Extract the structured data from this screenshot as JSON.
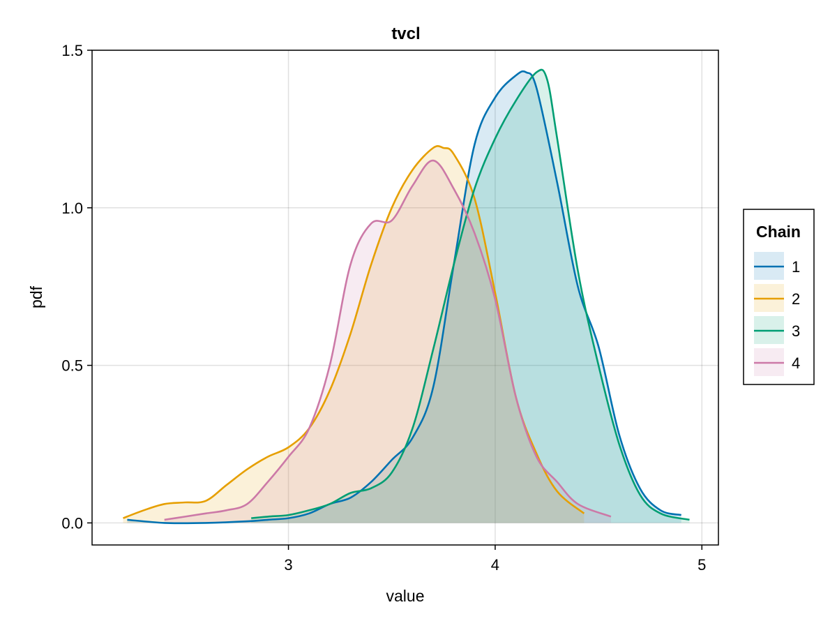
{
  "chart_data": {
    "type": "area",
    "title": "tvcl",
    "xlabel": "value",
    "ylabel": "pdf",
    "xlim": [
      2.05,
      5.08
    ],
    "ylim": [
      -0.07,
      1.5
    ],
    "xticks": [
      3,
      4,
      5
    ],
    "xtick_labels": [
      "3",
      "4",
      "5"
    ],
    "yticks": [
      0.0,
      0.5,
      1.0,
      1.5
    ],
    "ytick_labels": [
      "0.0",
      "0.5",
      "1.0",
      "1.5"
    ],
    "grid": true,
    "legend": {
      "title": "Chain",
      "placement": "right",
      "entries": [
        "1",
        "2",
        "3",
        "4"
      ]
    },
    "series": [
      {
        "name": "1",
        "color": "#0072b2",
        "x": [
          2.22,
          2.4,
          2.6,
          2.8,
          2.9,
          3.0,
          3.1,
          3.2,
          3.3,
          3.4,
          3.5,
          3.6,
          3.7,
          3.8,
          3.9,
          4.0,
          4.1,
          4.15,
          4.2,
          4.3,
          4.4,
          4.5,
          4.6,
          4.7,
          4.8,
          4.9
        ],
        "y": [
          0.01,
          0.0,
          0.0,
          0.005,
          0.01,
          0.015,
          0.03,
          0.06,
          0.08,
          0.13,
          0.2,
          0.27,
          0.43,
          0.82,
          1.2,
          1.35,
          1.42,
          1.43,
          1.38,
          1.08,
          0.75,
          0.56,
          0.28,
          0.11,
          0.04,
          0.025
        ]
      },
      {
        "name": "2",
        "color": "#e69f00",
        "x": [
          2.2,
          2.3,
          2.4,
          2.5,
          2.6,
          2.7,
          2.8,
          2.9,
          3.0,
          3.1,
          3.2,
          3.3,
          3.4,
          3.5,
          3.6,
          3.7,
          3.75,
          3.8,
          3.9,
          4.0,
          4.1,
          4.2,
          4.3,
          4.43
        ],
        "y": [
          0.015,
          0.04,
          0.06,
          0.065,
          0.07,
          0.12,
          0.17,
          0.21,
          0.24,
          0.3,
          0.42,
          0.6,
          0.82,
          1.0,
          1.12,
          1.19,
          1.19,
          1.17,
          1.03,
          0.73,
          0.4,
          0.22,
          0.1,
          0.03
        ]
      },
      {
        "name": "3",
        "color": "#009e73",
        "x": [
          2.82,
          2.9,
          3.0,
          3.1,
          3.2,
          3.3,
          3.4,
          3.5,
          3.6,
          3.7,
          3.8,
          3.9,
          4.0,
          4.1,
          4.2,
          4.25,
          4.3,
          4.4,
          4.5,
          4.6,
          4.7,
          4.8,
          4.94
        ],
        "y": [
          0.015,
          0.02,
          0.025,
          0.04,
          0.06,
          0.095,
          0.11,
          0.16,
          0.3,
          0.55,
          0.82,
          1.06,
          1.22,
          1.34,
          1.43,
          1.41,
          1.22,
          0.8,
          0.5,
          0.25,
          0.09,
          0.03,
          0.01
        ]
      },
      {
        "name": "4",
        "color": "#cc79a7",
        "x": [
          2.4,
          2.5,
          2.6,
          2.7,
          2.8,
          2.9,
          3.0,
          3.1,
          3.2,
          3.3,
          3.4,
          3.5,
          3.6,
          3.7,
          3.8,
          3.9,
          4.0,
          4.1,
          4.2,
          4.3,
          4.4,
          4.56
        ],
        "y": [
          0.01,
          0.02,
          0.03,
          0.04,
          0.06,
          0.13,
          0.21,
          0.3,
          0.5,
          0.82,
          0.95,
          0.96,
          1.07,
          1.15,
          1.06,
          0.92,
          0.71,
          0.4,
          0.21,
          0.13,
          0.06,
          0.02
        ]
      }
    ]
  }
}
